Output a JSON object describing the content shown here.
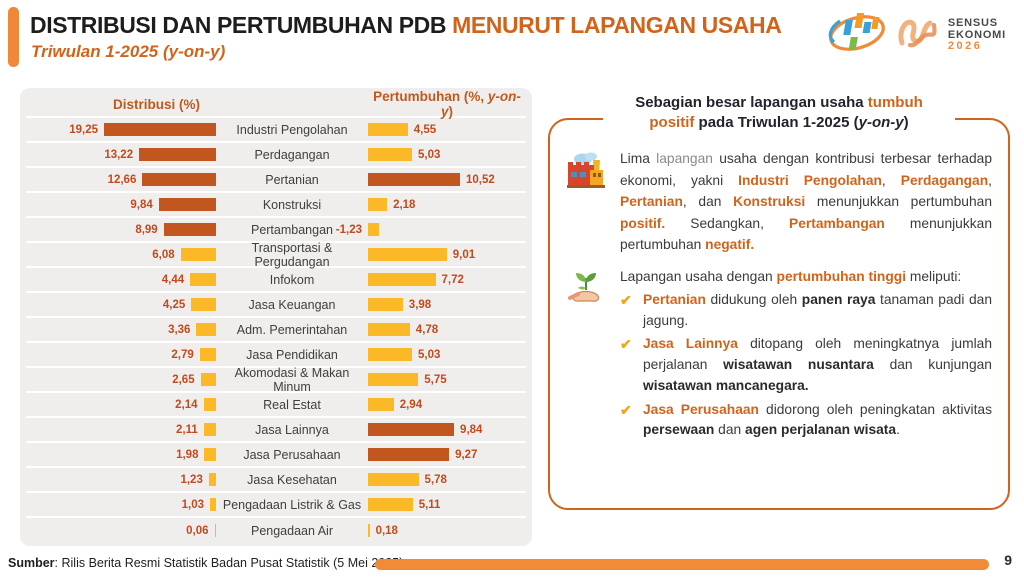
{
  "header": {
    "title_main": "DISTRIBUSI DAN PERTUMBUHAN PDB ",
    "title_accent": "MENURUT LAPANGAN USAHA",
    "subtitle": "Triwulan 1-2025 (y-on-y)"
  },
  "logos": {
    "sensus_line1": "SENSUS",
    "sensus_line2": "EKONOMI",
    "sensus_year": "2026"
  },
  "chart_data": {
    "type": "bar",
    "title": "Distribusi dan Pertumbuhan PDB Menurut Lapangan Usaha, Triwulan 1-2025 (y-on-y)",
    "dist_header": "Distribusi (%)",
    "growth_header_prefix": "Pertumbuhan (%, ",
    "growth_header_italic": "y-on-y",
    "growth_header_suffix": ")",
    "dist_axis_max": 19.25,
    "growth_axis_max": 10.52,
    "categories": [
      "Industri Pengolahan",
      "Perdagangan",
      "Pertanian",
      "Konstruksi",
      "Pertambangan",
      "Transportasi & Pergudangan",
      "Infokom",
      "Jasa Keuangan",
      "Adm. Pemerintahan",
      "Jasa Pendidikan",
      "Akomodasi & Makan Minum",
      "Real Estat",
      "Jasa Lainnya",
      "Jasa Perusahaan",
      "Jasa Kesehatan",
      "Pengadaan Listrik & Gas",
      "Pengadaan Air"
    ],
    "series": [
      {
        "name": "Distribusi (%)",
        "values": [
          19.25,
          13.22,
          12.66,
          9.84,
          8.99,
          6.08,
          4.44,
          4.25,
          3.36,
          2.79,
          2.65,
          2.14,
          2.11,
          1.98,
          1.23,
          1.03,
          0.06
        ]
      },
      {
        "name": "Pertumbuhan (%, y-on-y)",
        "values": [
          4.55,
          5.03,
          10.52,
          2.18,
          -1.23,
          9.01,
          7.72,
          3.98,
          4.78,
          5.03,
          5.75,
          2.94,
          9.84,
          9.27,
          5.78,
          5.11,
          0.18
        ]
      }
    ],
    "colors": {
      "bar_dark": "#C1571E",
      "bar_yellow": "#FBB827",
      "value_text": "#C14A1E"
    },
    "rows": [
      {
        "label": "Industri Pengolahan",
        "dist": 19.25,
        "dist_text": "19,25",
        "growth": 4.55,
        "growth_text": "4,55",
        "dist_hi": true,
        "growth_hi": false
      },
      {
        "label": "Perdagangan",
        "dist": 13.22,
        "dist_text": "13,22",
        "growth": 5.03,
        "growth_text": "5,03",
        "dist_hi": true,
        "growth_hi": false
      },
      {
        "label": "Pertanian",
        "dist": 12.66,
        "dist_text": "12,66",
        "growth": 10.52,
        "growth_text": "10,52",
        "dist_hi": true,
        "growth_hi": true
      },
      {
        "label": "Konstruksi",
        "dist": 9.84,
        "dist_text": "9,84",
        "growth": 2.18,
        "growth_text": "2,18",
        "dist_hi": true,
        "growth_hi": false
      },
      {
        "label": "Pertambangan",
        "dist": 8.99,
        "dist_text": "8,99",
        "growth": -1.23,
        "growth_text": "-1,23",
        "dist_hi": true,
        "growth_hi": false
      },
      {
        "label": "Transportasi & Pergudangan",
        "dist": 6.08,
        "dist_text": "6,08",
        "growth": 9.01,
        "growth_text": "9,01",
        "dist_hi": false,
        "growth_hi": false
      },
      {
        "label": "Infokom",
        "dist": 4.44,
        "dist_text": "4,44",
        "growth": 7.72,
        "growth_text": "7,72",
        "dist_hi": false,
        "growth_hi": false
      },
      {
        "label": "Jasa Keuangan",
        "dist": 4.25,
        "dist_text": "4,25",
        "growth": 3.98,
        "growth_text": "3,98",
        "dist_hi": false,
        "growth_hi": false
      },
      {
        "label": "Adm. Pemerintahan",
        "dist": 3.36,
        "dist_text": "3,36",
        "growth": 4.78,
        "growth_text": "4,78",
        "dist_hi": false,
        "growth_hi": false
      },
      {
        "label": "Jasa Pendidikan",
        "dist": 2.79,
        "dist_text": "2,79",
        "growth": 5.03,
        "growth_text": "5,03",
        "dist_hi": false,
        "growth_hi": false
      },
      {
        "label": "Akomodasi & Makan Minum",
        "dist": 2.65,
        "dist_text": "2,65",
        "growth": 5.75,
        "growth_text": "5,75",
        "dist_hi": false,
        "growth_hi": false
      },
      {
        "label": "Real Estat",
        "dist": 2.14,
        "dist_text": "2,14",
        "growth": 2.94,
        "growth_text": "2,94",
        "dist_hi": false,
        "growth_hi": false
      },
      {
        "label": "Jasa Lainnya",
        "dist": 2.11,
        "dist_text": "2,11",
        "growth": 9.84,
        "growth_text": "9,84",
        "dist_hi": false,
        "growth_hi": true
      },
      {
        "label": "Jasa Perusahaan",
        "dist": 1.98,
        "dist_text": "1,98",
        "growth": 9.27,
        "growth_text": "9,27",
        "dist_hi": false,
        "growth_hi": true
      },
      {
        "label": "Jasa Kesehatan",
        "dist": 1.23,
        "dist_text": "1,23",
        "growth": 5.78,
        "growth_text": "5,78",
        "dist_hi": false,
        "growth_hi": false
      },
      {
        "label": "Pengadaan Listrik & Gas",
        "dist": 1.03,
        "dist_text": "1,03",
        "growth": 5.11,
        "growth_text": "5,11",
        "dist_hi": false,
        "growth_hi": false
      },
      {
        "label": "Pengadaan Air",
        "dist": 0.06,
        "dist_text": "0,06",
        "growth": 0.18,
        "growth_text": "0,18",
        "dist_hi": false,
        "growth_hi": false
      }
    ]
  },
  "right_panel": {
    "check_glyph": "✔",
    "title_segments": [
      {
        "t": "Sebagian besar lapangan usaha ",
        "s": "b"
      },
      {
        "t": "tumbuh positif",
        "s": "o"
      },
      {
        "t": " pada Triwulan 1-2025 (",
        "s": "b"
      },
      {
        "t": "y-on-y",
        "s": "b i"
      },
      {
        "t": ")",
        "s": "b"
      }
    ],
    "para1_segments": [
      {
        "t": "Lima ",
        "s": "n"
      },
      {
        "t": "lapangan",
        "s": "g"
      },
      {
        "t": " usaha dengan kontribusi terbesar terhadap ekonomi, yakni ",
        "s": "n"
      },
      {
        "t": "Industri Pengolahan",
        "s": "o"
      },
      {
        "t": ", ",
        "s": "n"
      },
      {
        "t": "Perdagangan",
        "s": "o"
      },
      {
        "t": ", ",
        "s": "n"
      },
      {
        "t": "Pertanian",
        "s": "o"
      },
      {
        "t": ", dan ",
        "s": "n"
      },
      {
        "t": "Konstruksi",
        "s": "o"
      },
      {
        "t": " menunjukkan pertumbuhan ",
        "s": "n"
      },
      {
        "t": "positif.",
        "s": "o"
      },
      {
        "t": " Sedangkan, ",
        "s": "n"
      },
      {
        "t": "Pertambangan",
        "s": "o"
      },
      {
        "t": " menunjukkan pertumbuhan ",
        "s": "n"
      },
      {
        "t": "negatif.",
        "s": "o"
      }
    ],
    "section2_intro_segments": [
      {
        "t": "Lapangan usaha dengan ",
        "s": "n"
      },
      {
        "t": "pertumbuhan tinggi",
        "s": "o"
      },
      {
        "t": " meliputi:",
        "s": "n"
      }
    ],
    "bullets": [
      {
        "segments": [
          {
            "t": "Pertanian",
            "s": "o"
          },
          {
            "t": " didukung oleh ",
            "s": "n"
          },
          {
            "t": "panen raya",
            "s": "b"
          },
          {
            "t": " tanaman padi dan jagung.",
            "s": "n"
          }
        ]
      },
      {
        "segments": [
          {
            "t": "Jasa Lainnya",
            "s": "o"
          },
          {
            "t": " ditopang oleh meningkatnya jumlah perjalanan ",
            "s": "n"
          },
          {
            "t": "wisatawan nusantara",
            "s": "b"
          },
          {
            "t": " dan kunjungan ",
            "s": "n"
          },
          {
            "t": "wisatawan mancanegara.",
            "s": "b"
          }
        ]
      },
      {
        "segments": [
          {
            "t": "Jasa Perusahaan",
            "s": "o"
          },
          {
            "t": " didorong oleh peningkatan aktivitas ",
            "s": "n"
          },
          {
            "t": "persewaan",
            "s": "b"
          },
          {
            "t": " dan ",
            "s": "n"
          },
          {
            "t": "agen perjalanan wisata",
            "s": "b"
          },
          {
            "t": ".",
            "s": "n"
          }
        ]
      }
    ]
  },
  "footer": {
    "source_label": "Sumber",
    "source_text": ": Rilis Berita Resmi Statistik Badan Pusat Statistik (5 Mei 2025)",
    "page_number": "9"
  }
}
